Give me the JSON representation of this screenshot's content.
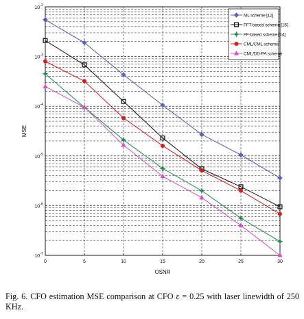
{
  "caption": "Fig. 6.   CFO estimation MSE comparison at CFO ε = 0.25 with laser linewidth of 250 KHz.",
  "chart_data": {
    "type": "line",
    "xlabel": "OSNR",
    "ylabel": "MSE",
    "xlim": [
      0,
      30
    ],
    "ylim_log10": [
      -7,
      -2
    ],
    "y_scale": "log",
    "grid": true,
    "legend_position": "top-right",
    "x_ticks": [
      "0",
      "5",
      "10",
      "15",
      "20",
      "25",
      "30"
    ],
    "y_ticks": [
      {
        "base": "10",
        "exp": "-2"
      },
      {
        "base": "10",
        "exp": "-3"
      },
      {
        "base": "10",
        "exp": "-4"
      },
      {
        "base": "10",
        "exp": "-5"
      },
      {
        "base": "10",
        "exp": "-6"
      },
      {
        "base": "10",
        "exp": "-7"
      }
    ],
    "x": [
      0,
      5,
      10,
      15,
      20,
      25,
      30
    ],
    "series": [
      {
        "name": "ML scheme [12]",
        "color": "#5b63b5",
        "marker": "diamond",
        "values": [
          0.0055,
          0.0019,
          0.00043,
          0.000105,
          2.7e-05,
          1.05e-05,
          3.6e-06
        ]
      },
      {
        "name": "FFT-based scheme [16]",
        "color": "#1a1a1a",
        "marker": "square",
        "values": [
          0.0021,
          0.00068,
          0.000125,
          2.3e-05,
          5.5e-06,
          2.4e-06,
          9.5e-07
        ]
      },
      {
        "name": "FF-based scheme [14]",
        "color": "#2e8b57",
        "marker": "star",
        "values": [
          0.00045,
          9.5e-05,
          2.1e-05,
          5.6e-06,
          2e-06,
          5.6e-07,
          1.9e-07
        ]
      },
      {
        "name": "CML/CML scheme",
        "color": "#d42020",
        "marker": "circle",
        "values": [
          0.0008,
          0.00032,
          5.8e-05,
          1.6e-05,
          5.1e-06,
          2e-06,
          6.8e-07
        ]
      },
      {
        "name": "CML/DD-PA scheme",
        "color": "#d455c8",
        "marker": "triangle",
        "values": [
          0.00025,
          9.5e-05,
          1.65e-05,
          3.9e-06,
          1.45e-06,
          4e-07,
          1e-07
        ]
      }
    ]
  }
}
